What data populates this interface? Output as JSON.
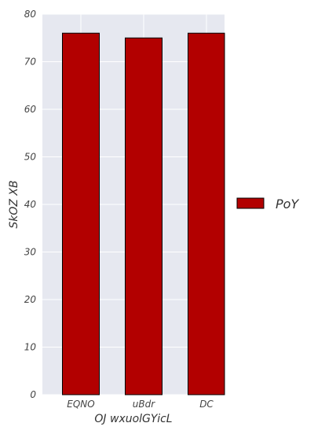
{
  "chart_data": {
    "type": "bar",
    "title": "",
    "xlabel": "OJ wxuolGYicL",
    "ylabel": "SkOZ XB",
    "categories": [
      "EQNO",
      "uBdr",
      "DC"
    ],
    "series": [
      {
        "name": "PoY",
        "values": [
          76,
          75,
          76
        ],
        "color": "#b20000"
      }
    ],
    "ylim": [
      0,
      80
    ],
    "yticks": [
      0,
      10,
      20,
      30,
      40,
      50,
      60,
      70,
      80
    ],
    "grid": true,
    "legend_position": "right",
    "colors": {
      "plot_background": "#e6e8f0",
      "grid": "#ffffff",
      "bar": "#b20000",
      "bar_edge": "#000000"
    }
  }
}
